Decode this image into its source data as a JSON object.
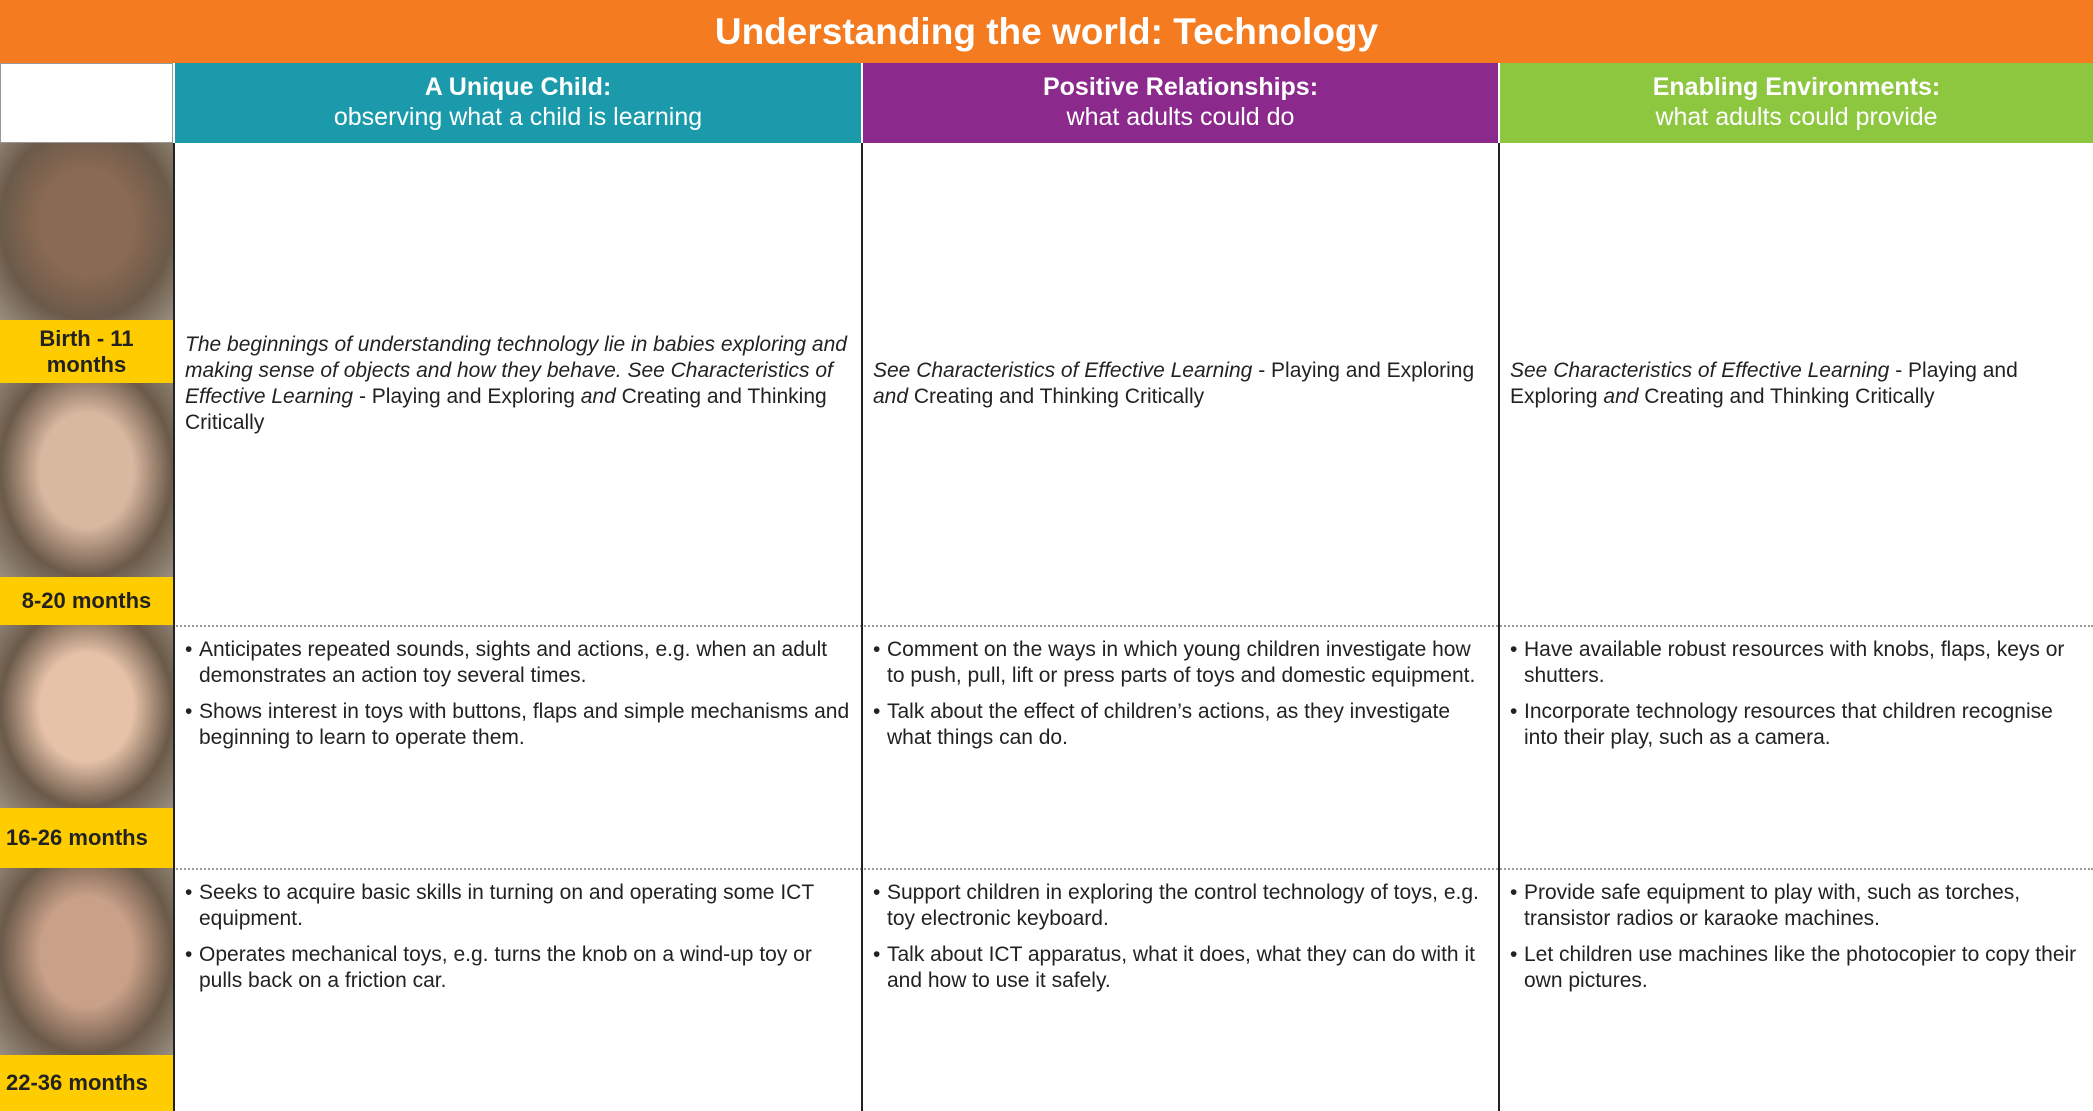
{
  "title": "Understanding the world: Technology",
  "columns": [
    {
      "heading": "A Unique Child:",
      "subheading": "observing what a child is learning"
    },
    {
      "heading": "Positive Relationships:",
      "subheading": "what adults could do"
    },
    {
      "heading": "Enabling Environments:",
      "subheading": "what adults could provide"
    }
  ],
  "age_bands": [
    "Birth - 11 months",
    "8-20 months",
    "16-26 months",
    "22-36 months"
  ],
  "rows": [
    {
      "cells": [
        {
          "runs": [
            "The beginnings of understanding technology lie in babies exploring and making sense of objects and how they behave. See Characteristics of Effective Learning",
            " - Playing and Exploring ",
            "and",
            " Creating and Thinking Critically"
          ]
        },
        {
          "runs": [
            "See Characteristics of Effective Learning",
            " - Playing and Exploring ",
            "and",
            " Creating and Thinking Critically"
          ]
        },
        {
          "runs": [
            "See Characteristics of Effective Learning",
            " - Playing and Exploring ",
            "and",
            " Creating and Thinking Critically"
          ]
        }
      ]
    },
    {
      "cells": [
        {
          "bullets": [
            "Anticipates repeated sounds, sights and actions, e.g. when an adult demonstrates an action toy several times.",
            "Shows interest in toys with buttons, flaps and simple mechanisms and beginning to learn to operate them."
          ]
        },
        {
          "bullets": [
            "Comment on the ways in which young children investigate how to push, pull, lift or press parts of toys and domestic equipment.",
            "Talk about the effect of children’s actions, as they investigate what things can do."
          ]
        },
        {
          "bullets": [
            "Have available robust resources with knobs, flaps, keys or shutters.",
            "Incorporate technology resources that children recognise into their play, such as a camera."
          ]
        }
      ]
    },
    {
      "cells": [
        {
          "bullets": [
            "Seeks to acquire basic skills in turning on and operating some ICT equipment.",
            "Operates mechanical toys, e.g. turns the knob on a wind-up toy or pulls back on a friction car."
          ]
        },
        {
          "bullets": [
            "Support children in exploring the control technology of toys, e.g. toy electronic keyboard.",
            "Talk about ICT apparatus, what it does, what they can do with it and how to use it safely."
          ]
        },
        {
          "bullets": [
            "Provide safe equipment to play with, such as torches, transistor radios or karaoke machines.",
            "Let children use machines like the photocopier to copy their own pictures."
          ]
        }
      ]
    }
  ]
}
